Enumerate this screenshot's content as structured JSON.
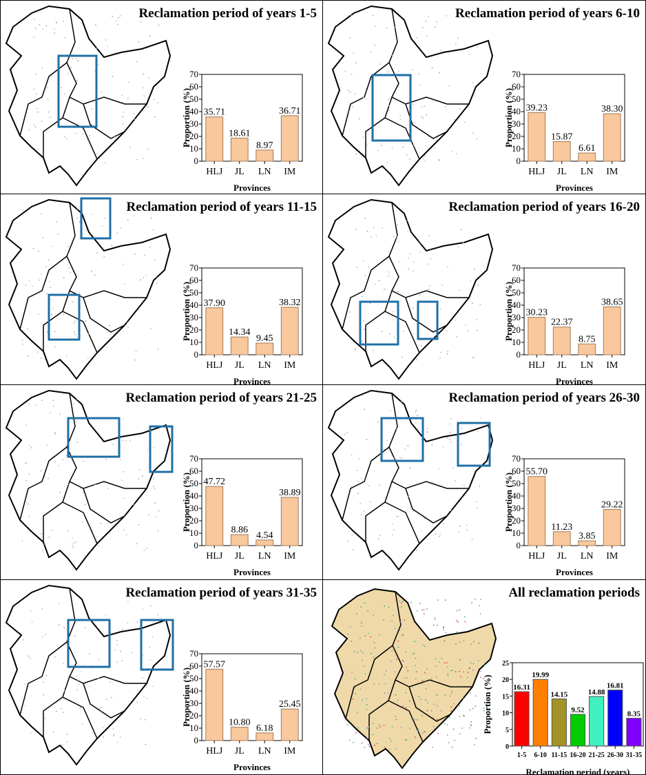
{
  "colors": {
    "province_bar_fill": "#f9c89c",
    "province_bar_stroke": "#a07a5a",
    "highlight_box": "#1f6fa6",
    "map_fill_all": "#efd9a8"
  },
  "chart_data": [
    {
      "type": "bar",
      "title": "Reclamation period of years 1-5",
      "categories": [
        "HLJ",
        "JL",
        "LN",
        "IM"
      ],
      "values": [
        35.71,
        18.61,
        8.97,
        36.71
      ],
      "labels": [
        "35.71",
        "18.61",
        "8.97",
        "36.71"
      ],
      "xlabel": "Provinces",
      "ylabel": "Proportion (%)",
      "ylim": [
        0,
        70
      ],
      "yticks": [
        0,
        10,
        20,
        30,
        40,
        50,
        60,
        70
      ]
    },
    {
      "type": "bar",
      "title": "Reclamation period of years 6-10",
      "categories": [
        "HLJ",
        "JL",
        "LN",
        "IM"
      ],
      "values": [
        39.23,
        15.87,
        6.61,
        38.3
      ],
      "labels": [
        "39.23",
        "15.87",
        "6.61",
        "38.30"
      ],
      "xlabel": "Provinces",
      "ylabel": "Proportion (%)",
      "ylim": [
        0,
        70
      ],
      "yticks": [
        0,
        10,
        20,
        30,
        40,
        50,
        60,
        70
      ]
    },
    {
      "type": "bar",
      "title": "Reclamation period of years 11-15",
      "categories": [
        "HLJ",
        "JL",
        "LN",
        "IM"
      ],
      "values": [
        37.9,
        14.34,
        9.45,
        38.32
      ],
      "labels": [
        "37.90",
        "14.34",
        "9.45",
        "38.32"
      ],
      "xlabel": "Provinces",
      "ylabel": "Proportion (%)",
      "ylim": [
        0,
        70
      ],
      "yticks": [
        0,
        10,
        20,
        30,
        40,
        50,
        60,
        70
      ]
    },
    {
      "type": "bar",
      "title": "Reclamation period of years 16-20",
      "categories": [
        "HLJ",
        "JL",
        "LN",
        "IM"
      ],
      "values": [
        30.23,
        22.37,
        8.75,
        38.65
      ],
      "labels": [
        "30.23",
        "22.37",
        "8.75",
        "38.65"
      ],
      "xlabel": "Provinces",
      "ylabel": "Proportion (%)",
      "ylim": [
        0,
        70
      ],
      "yticks": [
        0,
        10,
        20,
        30,
        40,
        50,
        60,
        70
      ]
    },
    {
      "type": "bar",
      "title": "Reclamation period of years 21-25",
      "categories": [
        "HLJ",
        "JL",
        "LN",
        "IM"
      ],
      "values": [
        47.72,
        8.86,
        4.54,
        38.89
      ],
      "labels": [
        "47.72",
        "8.86",
        "4.54",
        "38.89"
      ],
      "xlabel": "Provinces",
      "ylabel": "Proportion (%)",
      "ylim": [
        0,
        70
      ],
      "yticks": [
        0,
        10,
        20,
        30,
        40,
        50,
        60,
        70
      ]
    },
    {
      "type": "bar",
      "title": "Reclamation period of years 26-30",
      "categories": [
        "HLJ",
        "JL",
        "LN",
        "IM"
      ],
      "values": [
        55.7,
        11.23,
        3.85,
        29.22
      ],
      "labels": [
        "55.70",
        "11.23",
        "3.85",
        "29.22"
      ],
      "xlabel": "Provinces",
      "ylabel": "Proportion (%)",
      "ylim": [
        0,
        70
      ],
      "yticks": [
        0,
        10,
        20,
        30,
        40,
        50,
        60,
        70
      ]
    },
    {
      "type": "bar",
      "title": "Reclamation period of years 31-35",
      "categories": [
        "HLJ",
        "JL",
        "LN",
        "IM"
      ],
      "values": [
        57.57,
        10.8,
        6.18,
        25.45
      ],
      "labels": [
        "57.57",
        "10.80",
        "6.18",
        "25.45"
      ],
      "xlabel": "Provinces",
      "ylabel": "Proportion (%)",
      "ylim": [
        0,
        70
      ],
      "yticks": [
        0,
        10,
        20,
        30,
        40,
        50,
        60,
        70
      ]
    },
    {
      "type": "bar",
      "title": "All reclamation periods",
      "categories": [
        "1-5",
        "6-10",
        "11-15",
        "16-20",
        "21-25",
        "26-30",
        "31-35"
      ],
      "values": [
        16.31,
        19.99,
        14.15,
        9.52,
        14.88,
        16.81,
        8.35
      ],
      "labels": [
        "16.31",
        "19.99",
        "14.15",
        "9.52",
        "14.88",
        "16.81",
        "8.35"
      ],
      "colors": [
        "#ff0000",
        "#ff8000",
        "#a39326",
        "#00cc00",
        "#40f0c0",
        "#0000ff",
        "#8000ff"
      ],
      "xlabel": "Reclamation period (years)",
      "ylabel": "Proportion (%)",
      "ylim": [
        0,
        25
      ],
      "yticks": [
        0,
        5,
        10,
        15,
        20,
        25
      ]
    }
  ]
}
